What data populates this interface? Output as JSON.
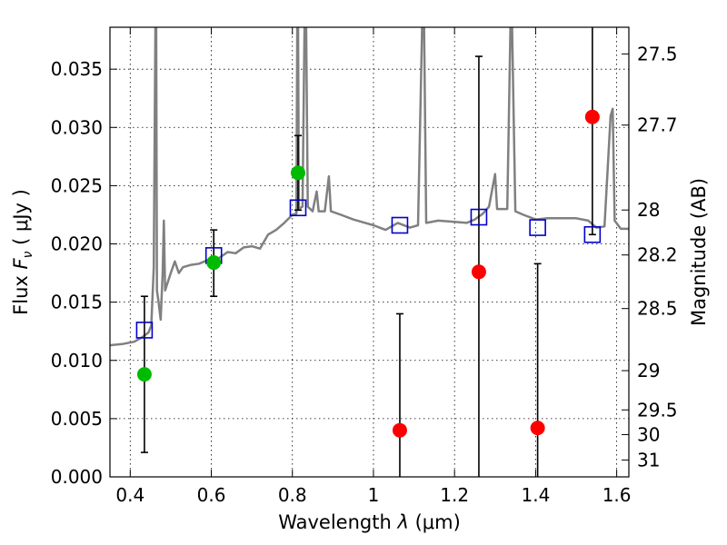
{
  "chart_data": {
    "type": "scatter",
    "xlabel_prefix": "Wavelength  ",
    "xlabel_symbol": "λ",
    "xlabel_unit": " (μm)",
    "ylabel_prefix": "Flux  ",
    "ylabel_symbol": "F",
    "ylabel_subscript": "ν",
    "ylabel_unit": "  ( μJy )",
    "y2label": "Magnitude (AB)",
    "xlim": [
      0.35,
      1.63
    ],
    "ylim": [
      0.0,
      0.0386
    ],
    "grid": true,
    "x_ticks": [
      0.4,
      0.6,
      0.8,
      1.0,
      1.2,
      1.4,
      1.6
    ],
    "x_tick_labels": [
      "0.4",
      "0.6",
      "0.8",
      "1",
      "1.2",
      "1.4",
      "1.6"
    ],
    "y_ticks": [
      0.0,
      0.005,
      0.01,
      0.015,
      0.02,
      0.025,
      0.03,
      0.035
    ],
    "y_tick_labels": [
      "0.000",
      "0.005",
      "0.010",
      "0.015",
      "0.020",
      "0.025",
      "0.030",
      "0.035"
    ],
    "y2_ticks": [
      {
        "label": "27.5",
        "flux": 0.03631
      },
      {
        "label": "27.7",
        "flux": 0.0302
      },
      {
        "label": "28",
        "flux": 0.02291
      },
      {
        "label": "28.2",
        "flux": 0.01905
      },
      {
        "label": "28.5",
        "flux": 0.01445
      },
      {
        "label": "29",
        "flux": 0.00912
      },
      {
        "label": "29.5",
        "flux": 0.00575
      },
      {
        "label": "30",
        "flux": 0.00363
      },
      {
        "label": "31",
        "flux": 0.00145
      }
    ],
    "series": [
      {
        "marker": "square",
        "color": "#0000cc",
        "points": [
          {
            "x": 0.435,
            "y": 0.0126
          },
          {
            "x": 0.606,
            "y": 0.019
          },
          {
            "x": 0.814,
            "y": 0.0231
          },
          {
            "x": 1.065,
            "y": 0.0216
          },
          {
            "x": 1.26,
            "y": 0.0223
          },
          {
            "x": 1.405,
            "y": 0.0214
          },
          {
            "x": 1.54,
            "y": 0.0208
          }
        ]
      },
      {
        "marker": "circle",
        "color": "#00bb00",
        "points": [
          {
            "x": 0.435,
            "y": 0.0088,
            "yerr_low": 0.0021,
            "yerr_high": 0.0155
          },
          {
            "x": 0.606,
            "y": 0.0184,
            "yerr_low": 0.0155,
            "yerr_high": 0.0212
          },
          {
            "x": 0.814,
            "y": 0.0261,
            "yerr_low": 0.0229,
            "yerr_high": 0.0293
          }
        ]
      },
      {
        "marker": "circle",
        "color": "#ff0000",
        "points": [
          {
            "x": 1.065,
            "y": 0.004,
            "yerr_low": 0.0,
            "yerr_high": 0.014
          },
          {
            "x": 1.26,
            "y": 0.0176,
            "yerr_low": 0.0,
            "yerr_high": 0.0361
          },
          {
            "x": 1.405,
            "y": 0.0042,
            "yerr_low": 0.0,
            "yerr_high": 0.0183
          },
          {
            "x": 1.54,
            "y": 0.0309,
            "yerr_low": 0.0208,
            "yerr_high": 0.0386
          }
        ]
      }
    ],
    "spectrum": {
      "color": "#808080",
      "points": [
        [
          0.35,
          0.0113
        ],
        [
          0.38,
          0.0114
        ],
        [
          0.41,
          0.0116
        ],
        [
          0.43,
          0.012
        ],
        [
          0.445,
          0.0124
        ],
        [
          0.452,
          0.013
        ],
        [
          0.458,
          0.018
        ],
        [
          0.462,
          0.0386
        ],
        [
          0.464,
          0.0386
        ],
        [
          0.466,
          0.016
        ],
        [
          0.47,
          0.015
        ],
        [
          0.475,
          0.0135
        ],
        [
          0.48,
          0.0175
        ],
        [
          0.483,
          0.022
        ],
        [
          0.486,
          0.016
        ],
        [
          0.5,
          0.0175
        ],
        [
          0.51,
          0.0185
        ],
        [
          0.52,
          0.0175
        ],
        [
          0.53,
          0.018
        ],
        [
          0.55,
          0.0182
        ],
        [
          0.57,
          0.0183
        ],
        [
          0.59,
          0.0186
        ],
        [
          0.62,
          0.0188
        ],
        [
          0.64,
          0.0193
        ],
        [
          0.66,
          0.0192
        ],
        [
          0.68,
          0.0197
        ],
        [
          0.7,
          0.0198
        ],
        [
          0.72,
          0.0196
        ],
        [
          0.74,
          0.0208
        ],
        [
          0.76,
          0.0212
        ],
        [
          0.78,
          0.0218
        ],
        [
          0.8,
          0.0225
        ],
        [
          0.81,
          0.0226
        ],
        [
          0.812,
          0.0386
        ],
        [
          0.814,
          0.0386
        ],
        [
          0.816,
          0.023
        ],
        [
          0.825,
          0.0232
        ],
        [
          0.83,
          0.0386
        ],
        [
          0.834,
          0.0386
        ],
        [
          0.838,
          0.0232
        ],
        [
          0.85,
          0.0228
        ],
        [
          0.86,
          0.0245
        ],
        [
          0.865,
          0.0228
        ],
        [
          0.88,
          0.0228
        ],
        [
          0.89,
          0.0258
        ],
        [
          0.895,
          0.0228
        ],
        [
          0.92,
          0.0225
        ],
        [
          0.95,
          0.0221
        ],
        [
          0.98,
          0.0218
        ],
        [
          1.0,
          0.0216
        ],
        [
          1.03,
          0.0212
        ],
        [
          1.06,
          0.0218
        ],
        [
          1.09,
          0.0214
        ],
        [
          1.11,
          0.0216
        ],
        [
          1.12,
          0.0386
        ],
        [
          1.125,
          0.0386
        ],
        [
          1.13,
          0.0218
        ],
        [
          1.16,
          0.022
        ],
        [
          1.2,
          0.0219
        ],
        [
          1.23,
          0.0218
        ],
        [
          1.25,
          0.0221
        ],
        [
          1.27,
          0.0226
        ],
        [
          1.285,
          0.0232
        ],
        [
          1.3,
          0.026
        ],
        [
          1.305,
          0.023
        ],
        [
          1.33,
          0.023
        ],
        [
          1.338,
          0.0386
        ],
        [
          1.342,
          0.0386
        ],
        [
          1.35,
          0.0228
        ],
        [
          1.37,
          0.0225
        ],
        [
          1.4,
          0.0221
        ],
        [
          1.43,
          0.0222
        ],
        [
          1.47,
          0.0222
        ],
        [
          1.5,
          0.0222
        ],
        [
          1.53,
          0.022
        ],
        [
          1.55,
          0.0214
        ],
        [
          1.57,
          0.0215
        ],
        [
          1.585,
          0.031
        ],
        [
          1.59,
          0.0316
        ],
        [
          1.595,
          0.022
        ],
        [
          1.61,
          0.0213
        ],
        [
          1.63,
          0.0213
        ]
      ]
    }
  }
}
